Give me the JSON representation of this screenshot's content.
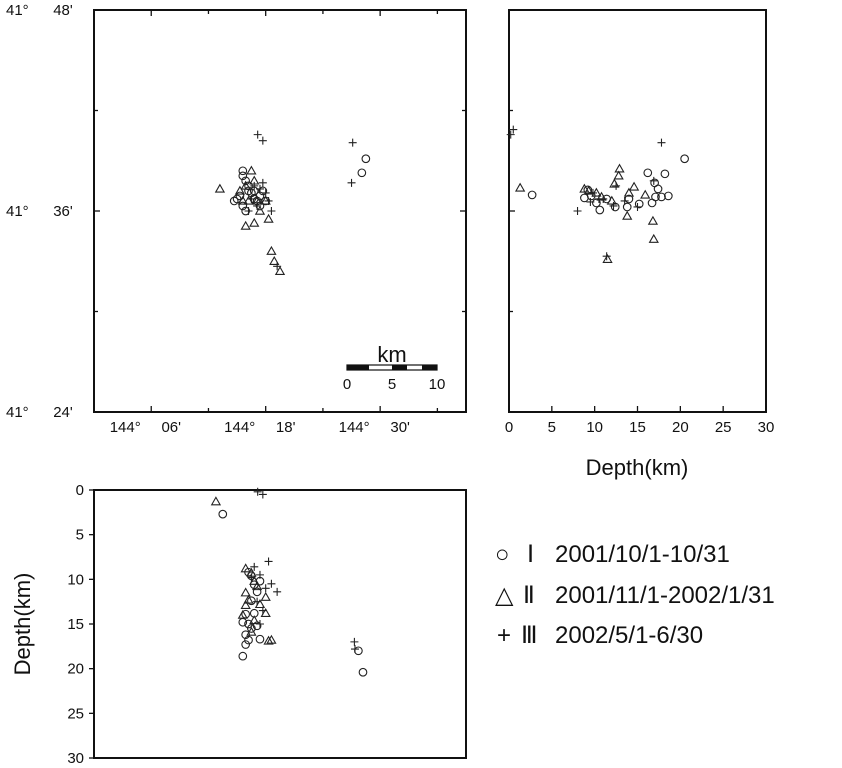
{
  "chart_data": [
    {
      "id": "map",
      "type": "scatter",
      "xaxis": {
        "ticks": [
          {
            "value": 144.1,
            "deg": "144°",
            "min": "06'"
          },
          {
            "value": 144.3,
            "deg": "144°",
            "min": "18'"
          },
          {
            "value": 144.5,
            "deg": "144°",
            "min": "30'"
          }
        ],
        "range": [
          144.0,
          144.65
        ]
      },
      "yaxis": {
        "ticks": [
          {
            "value": 41.8,
            "deg": "41°",
            "min": "48'"
          },
          {
            "value": 41.6,
            "deg": "41°",
            "min": "36'"
          },
          {
            "value": 41.4,
            "deg": "41°",
            "min": "24'"
          }
        ],
        "range": [
          41.4,
          41.8
        ]
      },
      "scale_bar": {
        "unit": "km",
        "ticks": [
          "0",
          "5",
          "10"
        ],
        "length_km": 10
      },
      "series": [
        {
          "key": "I",
          "marker": "circle",
          "points": [
            [
              144.26,
              41.64
            ],
            [
              144.26,
              41.635
            ],
            [
              144.265,
              41.63
            ],
            [
              144.27,
              41.625
            ],
            [
              144.27,
              41.62
            ],
            [
              144.275,
              41.618
            ],
            [
              144.28,
              41.612
            ],
            [
              144.285,
              41.61
            ],
            [
              144.29,
              41.615
            ],
            [
              144.295,
              41.62
            ],
            [
              144.255,
              41.615
            ],
            [
              144.25,
              41.612
            ],
            [
              144.245,
              41.61
            ],
            [
              144.26,
              41.605
            ],
            [
              144.265,
              41.6
            ],
            [
              144.29,
              41.605
            ],
            [
              144.3,
              41.61
            ],
            [
              144.28,
              41.62
            ],
            [
              144.475,
              41.652
            ],
            [
              144.468,
              41.638
            ]
          ]
        },
        {
          "key": "II",
          "marker": "triangle",
          "points": [
            [
              144.22,
              41.622
            ],
            [
              144.265,
              41.625
            ],
            [
              144.275,
              41.64
            ],
            [
              144.28,
              41.63
            ],
            [
              144.255,
              41.62
            ],
            [
              144.27,
              41.61
            ],
            [
              144.29,
              41.6
            ],
            [
              144.305,
              41.592
            ],
            [
              144.265,
              41.585
            ],
            [
              144.28,
              41.588
            ],
            [
              144.31,
              41.56
            ],
            [
              144.315,
              41.55
            ],
            [
              144.325,
              41.54
            ],
            [
              144.3,
              41.61
            ],
            [
              144.285,
              41.61
            ],
            [
              144.26,
              41.61
            ]
          ]
        },
        {
          "key": "III",
          "marker": "plus",
          "points": [
            [
              144.286,
              41.676
            ],
            [
              144.295,
              41.67
            ],
            [
              144.452,
              41.668
            ],
            [
              144.45,
              41.628
            ],
            [
              144.28,
              41.625
            ],
            [
              144.29,
              41.622
            ],
            [
              144.3,
              41.618
            ],
            [
              144.305,
              41.61
            ],
            [
              144.27,
              41.6
            ],
            [
              144.285,
              41.605
            ],
            [
              144.31,
              41.6
            ],
            [
              144.32,
              41.545
            ],
            [
              144.275,
              41.612
            ],
            [
              144.295,
              41.628
            ]
          ]
        }
      ]
    },
    {
      "id": "lat-depth",
      "type": "scatter",
      "xlabel": "Depth(km)",
      "xaxis": {
        "ticks": [
          0,
          5,
          10,
          15,
          20,
          25,
          30
        ],
        "range": [
          0,
          30
        ]
      },
      "yaxis": {
        "range": [
          41.4,
          41.8
        ]
      },
      "series": [
        {
          "key": "I",
          "marker": "circle",
          "points": [
            [
              2.7,
              41.616
            ],
            [
              16.2,
              41.638
            ],
            [
              17.0,
              41.628
            ],
            [
              17.4,
              41.622
            ],
            [
              17.8,
              41.614
            ],
            [
              20.5,
              41.652
            ],
            [
              18.2,
              41.637
            ],
            [
              18.6,
              41.615
            ],
            [
              17.1,
              41.614
            ],
            [
              14.0,
              41.612
            ],
            [
              13.8,
              41.604
            ],
            [
              10.2,
              41.608
            ],
            [
              12.4,
              41.604
            ],
            [
              8.8,
              41.613
            ],
            [
              10.6,
              41.601
            ],
            [
              11.4,
              41.612
            ],
            [
              9.6,
              41.615
            ],
            [
              16.7,
              41.608
            ],
            [
              15.2,
              41.607
            ],
            [
              9.2,
              41.621
            ]
          ]
        },
        {
          "key": "II",
          "marker": "triangle",
          "points": [
            [
              1.3,
              41.623
            ],
            [
              8.8,
              41.622
            ],
            [
              9.3,
              41.62
            ],
            [
              10.2,
              41.618
            ],
            [
              10.8,
              41.614
            ],
            [
              12.3,
              41.627
            ],
            [
              12.9,
              41.642
            ],
            [
              12.8,
              41.635
            ],
            [
              14.0,
              41.618
            ],
            [
              14.6,
              41.624
            ],
            [
              15.9,
              41.616
            ],
            [
              16.8,
              41.59
            ],
            [
              16.9,
              41.572
            ],
            [
              11.5,
              41.552
            ],
            [
              13.8,
              41.595
            ],
            [
              12.0,
              41.61
            ]
          ]
        },
        {
          "key": "III",
          "marker": "plus",
          "points": [
            [
              0.2,
              41.676
            ],
            [
              0.5,
              41.681
            ],
            [
              17.8,
              41.668
            ],
            [
              16.9,
              41.63
            ],
            [
              8.0,
              41.6
            ],
            [
              9.5,
              41.609
            ],
            [
              11.0,
              41.612
            ],
            [
              12.5,
              41.625
            ],
            [
              13.5,
              41.61
            ],
            [
              15.0,
              41.604
            ],
            [
              11.4,
              41.555
            ],
            [
              9.8,
              41.618
            ],
            [
              10.5,
              41.612
            ],
            [
              12.2,
              41.605
            ]
          ]
        }
      ]
    },
    {
      "id": "lon-depth",
      "type": "scatter",
      "ylabel": "Depth(km)",
      "xaxis": {
        "range": [
          144.0,
          144.65
        ]
      },
      "yaxis": {
        "ticks": [
          0,
          5,
          10,
          15,
          20,
          25,
          30
        ],
        "range": [
          0,
          30
        ],
        "inverted": true
      },
      "series": [
        {
          "key": "I",
          "marker": "circle",
          "points": [
            [
              144.225,
              2.7
            ],
            [
              144.462,
              18.0
            ],
            [
              144.47,
              20.4
            ],
            [
              144.26,
              18.6
            ],
            [
              144.265,
              17.3
            ],
            [
              144.27,
              16.8
            ],
            [
              144.265,
              16.2
            ],
            [
              144.275,
              15.5
            ],
            [
              144.26,
              14.8
            ],
            [
              144.265,
              13.9
            ],
            [
              144.27,
              15.0
            ],
            [
              144.28,
              13.8
            ],
            [
              144.275,
              12.4
            ],
            [
              144.285,
              11.4
            ],
            [
              144.29,
              10.2
            ],
            [
              144.28,
              10.6
            ],
            [
              144.275,
              9.6
            ],
            [
              144.29,
              16.7
            ],
            [
              144.285,
              15.2
            ],
            [
              144.27,
              9.2
            ]
          ]
        },
        {
          "key": "II",
          "marker": "triangle",
          "points": [
            [
              144.213,
              1.3
            ],
            [
              144.265,
              8.8
            ],
            [
              144.275,
              9.3
            ],
            [
              144.28,
              10.2
            ],
            [
              144.285,
              10.8
            ],
            [
              144.27,
              12.3
            ],
            [
              144.265,
              12.9
            ],
            [
              144.26,
              14.0
            ],
            [
              144.28,
              14.6
            ],
            [
              144.29,
              12.8
            ],
            [
              144.3,
              13.8
            ],
            [
              144.305,
              16.9
            ],
            [
              144.31,
              16.8
            ],
            [
              144.275,
              15.9
            ],
            [
              144.265,
              11.5
            ],
            [
              144.3,
              12.0
            ]
          ]
        },
        {
          "key": "III",
          "marker": "plus",
          "points": [
            [
              144.286,
              0.2
            ],
            [
              144.295,
              0.5
            ],
            [
              144.455,
              17.0
            ],
            [
              144.456,
              17.8
            ],
            [
              144.28,
              8.6
            ],
            [
              144.29,
              9.5
            ],
            [
              144.3,
              11.0
            ],
            [
              144.305,
              8.0
            ],
            [
              144.275,
              9.8
            ],
            [
              144.285,
              12.5
            ],
            [
              144.31,
              10.5
            ],
            [
              144.32,
              11.4
            ],
            [
              144.295,
              13.5
            ],
            [
              144.29,
              15.0
            ]
          ]
        }
      ]
    }
  ],
  "legend": {
    "placement": "right-bottom",
    "entries": [
      {
        "symbol": "○",
        "numeral": "Ⅰ",
        "text": "2001/10/1-10/31"
      },
      {
        "symbol": "△",
        "numeral": "Ⅱ",
        "text": "2001/11/1-2002/1/31"
      },
      {
        "symbol": "+",
        "numeral": "Ⅲ",
        "text": "2002/5/1-6/30"
      }
    ]
  }
}
